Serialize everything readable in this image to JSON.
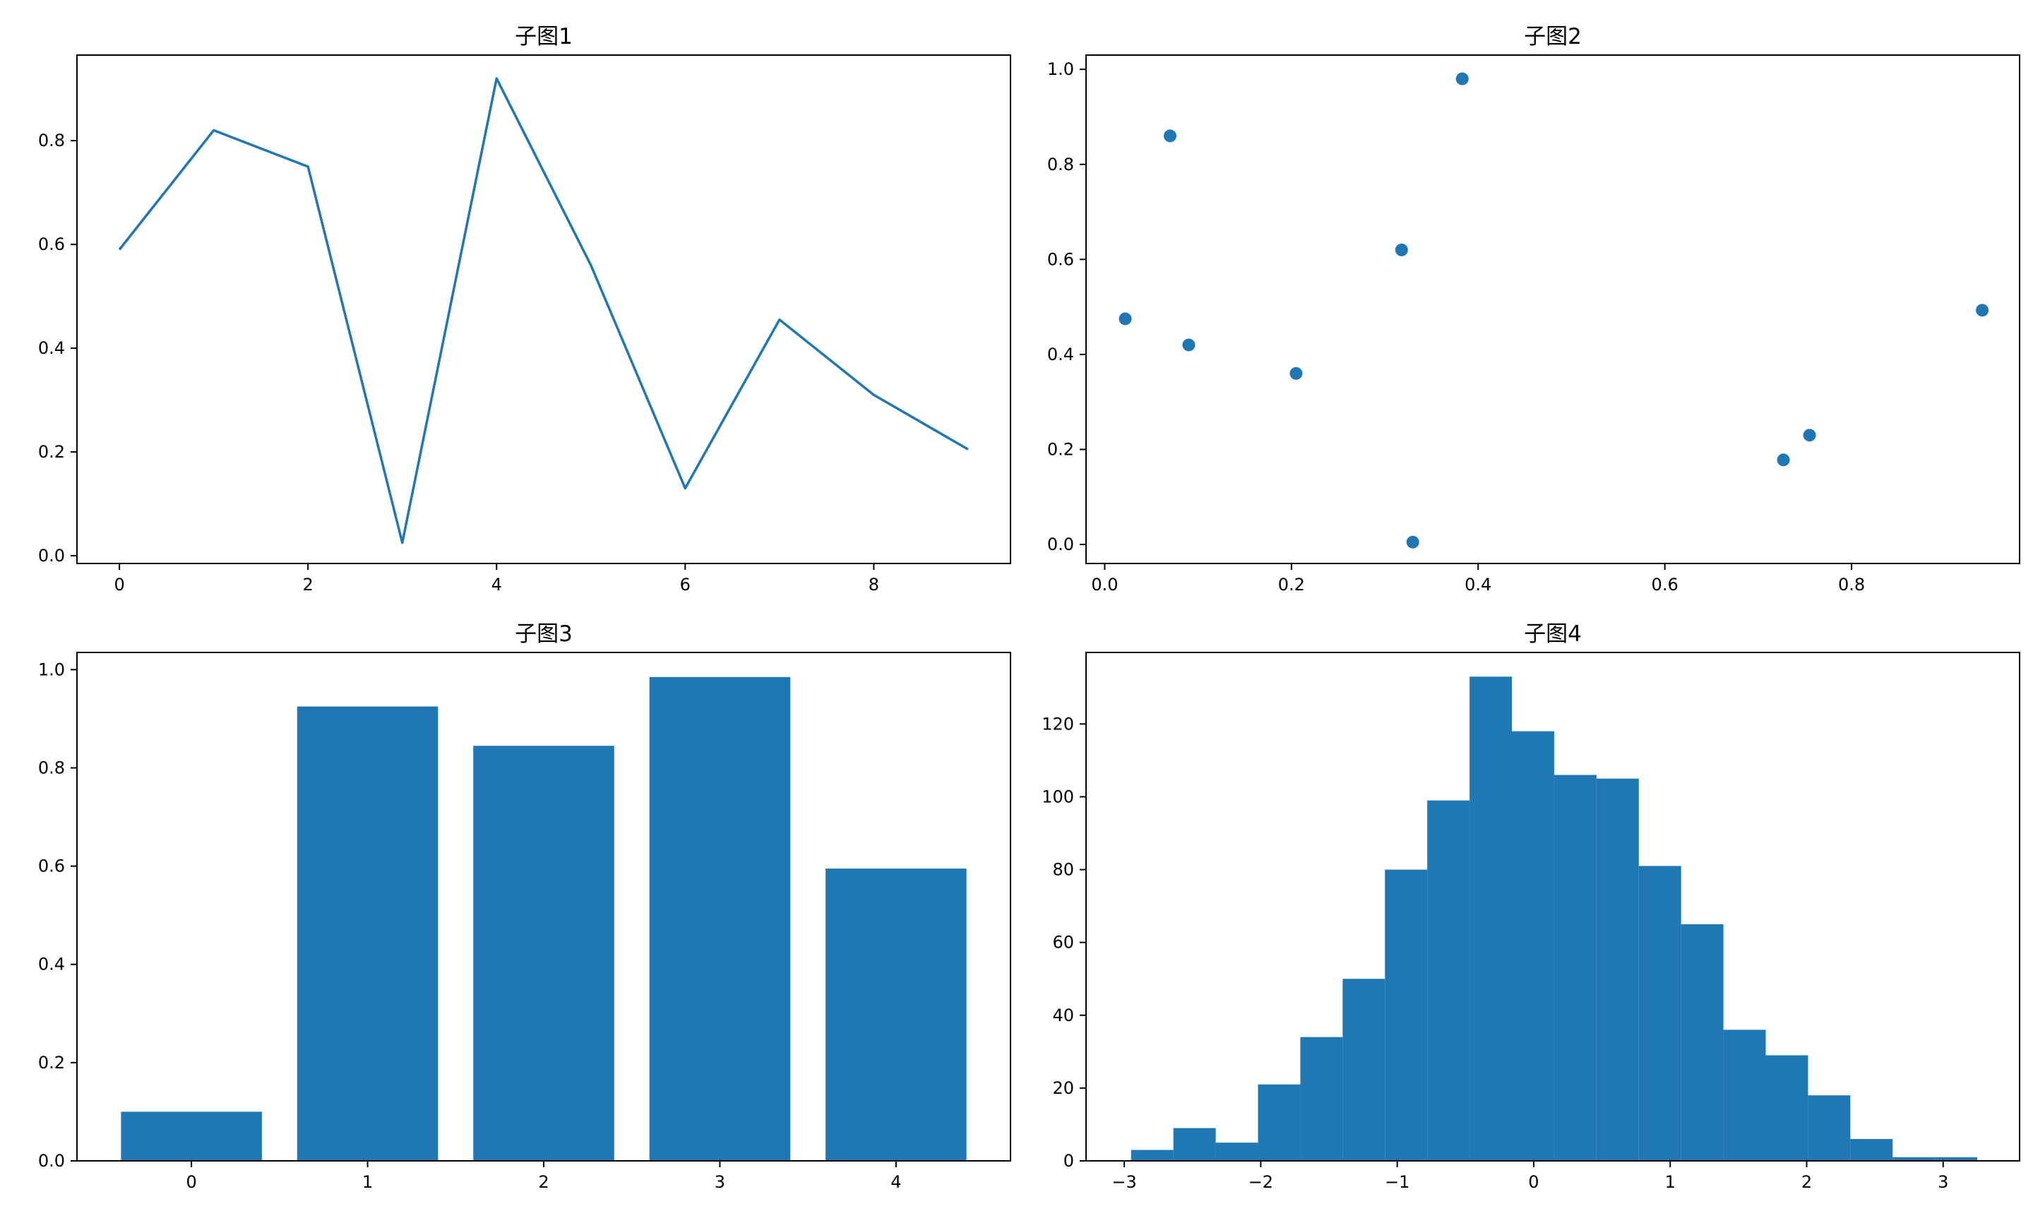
{
  "figure": {
    "background": "#ffffff",
    "series_color": "#1f77b4"
  },
  "chart_data": [
    {
      "type": "line",
      "title": "子图1",
      "xlabel": "",
      "ylabel": "",
      "x": [
        0,
        1,
        2,
        3,
        4,
        5,
        6,
        7,
        8,
        9
      ],
      "series": [
        {
          "values": [
            0.59,
            0.82,
            0.75,
            0.025,
            0.92,
            0.56,
            0.13,
            0.455,
            0.31,
            0.205
          ]
        }
      ],
      "xlim": [
        -0.45,
        9.45
      ],
      "ylim": [
        -0.015,
        0.965
      ],
      "xticks": [
        0,
        2,
        4,
        6,
        8
      ],
      "xtick_labels": [
        "0",
        "2",
        "4",
        "6",
        "8"
      ],
      "yticks": [
        0.0,
        0.2,
        0.4,
        0.6,
        0.8
      ],
      "ytick_labels": [
        "0.0",
        "0.2",
        "0.4",
        "0.6",
        "0.8"
      ],
      "grid": false
    },
    {
      "type": "scatter",
      "title": "子图2",
      "xlabel": "",
      "ylabel": "",
      "points": [
        [
          0.022,
          0.475
        ],
        [
          0.07,
          0.86
        ],
        [
          0.09,
          0.42
        ],
        [
          0.205,
          0.36
        ],
        [
          0.318,
          0.62
        ],
        [
          0.33,
          0.005
        ],
        [
          0.383,
          0.98
        ],
        [
          0.727,
          0.178
        ],
        [
          0.755,
          0.23
        ],
        [
          0.94,
          0.493
        ]
      ],
      "xlim": [
        -0.02,
        0.98
      ],
      "ylim": [
        -0.04,
        1.03
      ],
      "xticks": [
        0.0,
        0.2,
        0.4,
        0.6,
        0.8
      ],
      "xtick_labels": [
        "0.0",
        "0.2",
        "0.4",
        "0.6",
        "0.8"
      ],
      "yticks": [
        0.0,
        0.2,
        0.4,
        0.6,
        0.8,
        1.0
      ],
      "ytick_labels": [
        "0.0",
        "0.2",
        "0.4",
        "0.6",
        "0.8",
        "1.0"
      ],
      "grid": false
    },
    {
      "type": "bar",
      "title": "子图3",
      "xlabel": "",
      "ylabel": "",
      "categories": [
        "0",
        "1",
        "2",
        "3",
        "4"
      ],
      "values": [
        0.1,
        0.925,
        0.845,
        0.985,
        0.595
      ],
      "xlim": [
        -0.65,
        4.65
      ],
      "ylim": [
        0.0,
        1.035
      ],
      "yticks": [
        0.0,
        0.2,
        0.4,
        0.6,
        0.8,
        1.0
      ],
      "ytick_labels": [
        "0.0",
        "0.2",
        "0.4",
        "0.6",
        "0.8",
        "1.0"
      ],
      "grid": false
    },
    {
      "type": "bar",
      "title": "子图4",
      "xlabel": "",
      "ylabel": "",
      "bin_edges": [
        -2.95,
        -2.64,
        -2.33,
        -2.02,
        -1.71,
        -1.4,
        -1.09,
        -0.78,
        -0.47,
        -0.16,
        0.15,
        0.46,
        0.77,
        1.08,
        1.39,
        1.7,
        2.01,
        2.32,
        2.63,
        2.94,
        3.25
      ],
      "counts": [
        3,
        9,
        5,
        21,
        34,
        50,
        80,
        99,
        133,
        118,
        106,
        105,
        81,
        65,
        36,
        29,
        18,
        6,
        1,
        1
      ],
      "xlim": [
        -3.28,
        3.56
      ],
      "ylim": [
        0,
        139.65
      ],
      "xticks": [
        -3,
        -2,
        -1,
        0,
        1,
        2,
        3
      ],
      "xtick_labels": [
        "−3",
        "−2",
        "−1",
        "0",
        "1",
        "2",
        "3"
      ],
      "yticks": [
        0,
        20,
        40,
        60,
        80,
        100,
        120
      ],
      "ytick_labels": [
        "0",
        "20",
        "40",
        "60",
        "80",
        "100",
        "120"
      ],
      "grid": false
    }
  ]
}
